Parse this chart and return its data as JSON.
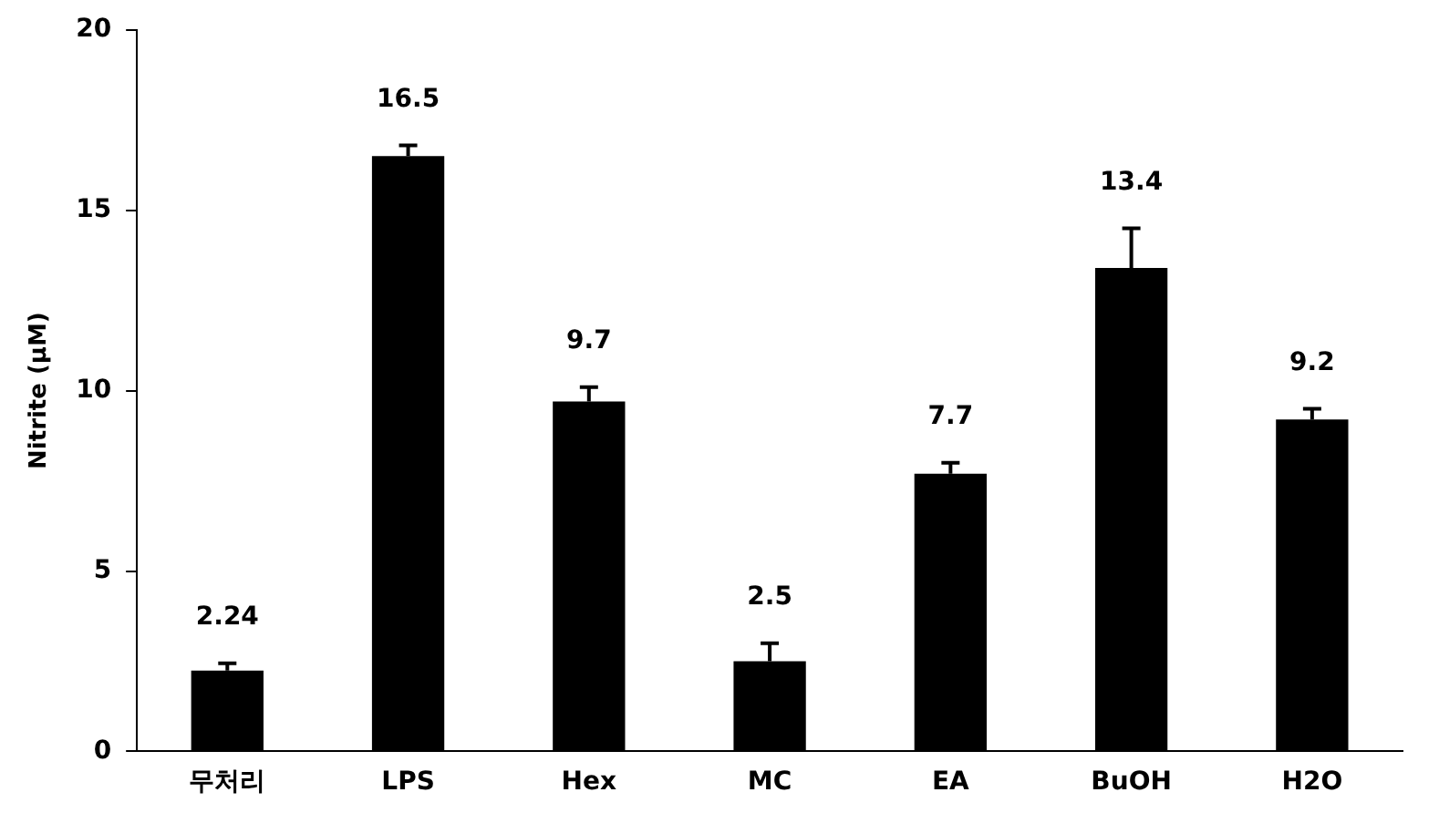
{
  "chart_data": {
    "type": "bar",
    "ylabel": "Nitrite (μM)",
    "categories": [
      "무처리",
      "LPS",
      "Hex",
      "MC",
      "EA",
      "BuOH",
      "H2O"
    ],
    "values": [
      2.24,
      16.5,
      9.7,
      2.5,
      7.7,
      13.4,
      9.2
    ],
    "errors": [
      [
        2.24,
        2.44
      ],
      [
        16.5,
        16.8
      ],
      [
        9.7,
        10.1
      ],
      [
        2.5,
        3.0
      ],
      [
        7.7,
        8.0
      ],
      [
        13.4,
        14.5
      ],
      [
        9.2,
        9.5
      ]
    ],
    "color": "#000000",
    "ylim": [
      0,
      20
    ],
    "yticks": [
      0,
      5,
      10,
      15,
      20
    ],
    "grid": false,
    "data_labels": true,
    "legend": false
  }
}
